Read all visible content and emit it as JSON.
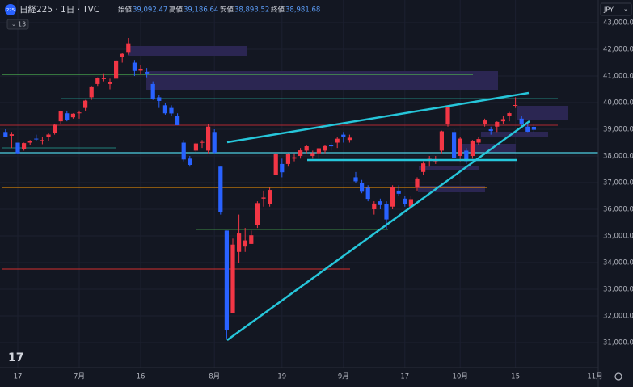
{
  "header": {
    "symbol": "日経225 · 1日 · TVC",
    "badge": "225",
    "indicators": "13",
    "currency": "JPY",
    "ohlc": [
      {
        "label": "始値",
        "value": "39,092.47"
      },
      {
        "label": "高値",
        "value": "39,186.64"
      },
      {
        "label": "安値",
        "value": "38,893.52"
      },
      {
        "label": "終値",
        "value": "38,981.68"
      }
    ]
  },
  "chart_data": {
    "type": "candlestick",
    "categories": [
      null,
      null,
      "17",
      null,
      null,
      null,
      null,
      null,
      null,
      null,
      null,
      null,
      "7月",
      null,
      null,
      null,
      null,
      null,
      null,
      null,
      null,
      null,
      "16",
      null,
      null,
      null,
      null,
      null,
      null,
      null,
      null,
      null,
      null,
      null,
      "8月",
      null,
      null,
      null,
      null,
      null,
      null,
      null,
      null,
      null,
      null,
      "19",
      null,
      null,
      null,
      null,
      null,
      null,
      null,
      null,
      null,
      "9月",
      null,
      null,
      null,
      null,
      null,
      null,
      null,
      null,
      null,
      "17",
      null,
      null,
      null,
      null,
      null,
      null,
      null,
      null,
      "10月",
      null,
      null,
      null,
      null,
      null,
      null,
      null,
      null,
      "15",
      null,
      null,
      null
    ],
    "x_label_right": "11月",
    "open": [
      38900,
      38760,
      38500,
      38250,
      38500,
      38650,
      38580,
      38700,
      38850,
      39300,
      39600,
      39450,
      39600,
      39800,
      40200,
      40700,
      40900,
      40700,
      40900,
      41700,
      41900,
      41500,
      41200,
      41150,
      40700,
      40200,
      39900,
      39800,
      39500,
      38500,
      37900,
      38200,
      38500,
      38200,
      38900,
      37600,
      35200,
      32100,
      34400,
      34600,
      34700,
      35400,
      36400,
      36200,
      37300,
      37700,
      37700,
      37900,
      38000,
      38200,
      38000,
      38100,
      38200,
      38400,
      38500,
      38800,
      38600,
      37200,
      37000,
      36800,
      36000,
      36300,
      36200,
      36100,
      36700,
      36400,
      36100,
      36800,
      37400,
      37900,
      37800,
      38200,
      39200,
      38900,
      38000,
      38200,
      38000,
      38500,
      39200,
      39000,
      39100,
      39300,
      39500,
      39900,
      39400,
      39100,
      39092.47
    ],
    "high": [
      39000,
      38900,
      38500,
      38500,
      38600,
      38800,
      38700,
      38850,
      39200,
      39700,
      39700,
      39600,
      39700,
      40100,
      40600,
      40950,
      41100,
      40900,
      41600,
      41850,
      42426,
      41600,
      41400,
      41300,
      40800,
      40300,
      40000,
      39900,
      39600,
      38600,
      38000,
      38500,
      38600,
      39200,
      39000,
      37600,
      35200,
      34900,
      35800,
      35300,
      35200,
      36300,
      36700,
      36800,
      38100,
      37900,
      38100,
      38100,
      38300,
      38400,
      38200,
      38300,
      38400,
      38500,
      38700,
      38900,
      38800,
      37400,
      37100,
      36900,
      36300,
      36400,
      36300,
      36900,
      36900,
      36500,
      36500,
      37200,
      37800,
      38000,
      38000,
      38950,
      39900,
      39000,
      38700,
      38300,
      38600,
      38700,
      39400,
      39100,
      39300,
      39500,
      39650,
      40200,
      39500,
      39200,
      39186.64
    ],
    "low": [
      38700,
      38300,
      38070,
      38200,
      38400,
      38550,
      38440,
      38550,
      38800,
      39200,
      39300,
      39400,
      39400,
      39700,
      40100,
      40600,
      40800,
      40500,
      40900,
      41500,
      41800,
      41000,
      41050,
      40950,
      40100,
      39800,
      39550,
      39500,
      39150,
      37800,
      37600,
      38100,
      38300,
      38100,
      38100,
      35800,
      31156,
      32100,
      34000,
      34400,
      34700,
      35300,
      36100,
      36100,
      37300,
      37200,
      37600,
      37800,
      37900,
      38100,
      37900,
      37900,
      38100,
      38200,
      38300,
      38500,
      38500,
      37000,
      36600,
      36300,
      35800,
      36000,
      35250,
      36000,
      36500,
      36100,
      36000,
      36700,
      37300,
      37600,
      37700,
      38100,
      39100,
      37900,
      37800,
      37700,
      37900,
      38400,
      39100,
      38800,
      38900,
      39200,
      39300,
      39800,
      39100,
      38900,
      38893.52
    ],
    "close": [
      38720,
      38814,
      38102,
      38482,
      38570,
      38633,
      38596,
      38804,
      39173,
      39667,
      39341,
      39583,
      39631,
      40074,
      40580,
      40913,
      40912,
      40780,
      41580,
      41831,
      42224,
      41190,
      41275,
      41097,
      40126,
      40063,
      39599,
      39594,
      39154,
      37869,
      37667,
      38468,
      38525,
      39101,
      38126,
      35909,
      31458,
      34675,
      35089,
      34831,
      35025,
      36232,
      36442,
      36726,
      38062,
      37388,
      38062,
      37951,
      38211,
      38364,
      38110,
      38288,
      38371,
      38362,
      38647,
      38700,
      38686,
      37047,
      36657,
      36391,
      36215,
      36159,
      35619,
      36833,
      36581,
      36203,
      36380,
      37155,
      37723,
      37940,
      37870,
      38925,
      39829,
      37919,
      38651,
      37808,
      38552,
      38635,
      39332,
      38937,
      39277,
      39380,
      39605,
      39910,
      39180,
      38911,
      38981.68
    ],
    "up_color": "#f23645",
    "down_color": "#2962ff",
    "ylim": [
      30060,
      43850
    ],
    "yticks": [
      {
        "value": 31000,
        "label": "31,000.00"
      },
      {
        "value": 32000,
        "label": "32,000.00"
      },
      {
        "value": 33000,
        "label": "33,000.00"
      },
      {
        "value": 34000,
        "label": "34,000.00"
      },
      {
        "value": 35000,
        "label": "35,000.00"
      },
      {
        "value": 36000,
        "label": "36,000.00"
      },
      {
        "value": 37000,
        "label": "37,000.00"
      },
      {
        "value": 38000,
        "label": "38,000.00"
      },
      {
        "value": 39000,
        "label": "39,000.00"
      },
      {
        "value": 40000,
        "label": "40,000.00"
      },
      {
        "value": 41000,
        "label": "41,000.00"
      },
      {
        "value": 42000,
        "label": "42,000.00"
      },
      {
        "value": 43000,
        "label": "43,000.00"
      }
    ],
    "grid": true
  }
}
